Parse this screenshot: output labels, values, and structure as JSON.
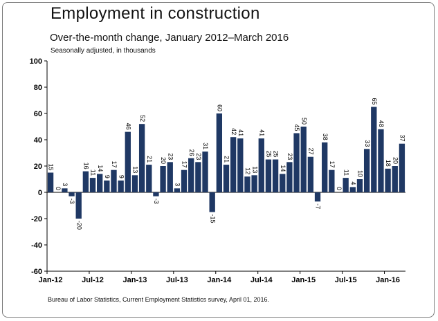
{
  "chart_data": {
    "type": "bar",
    "title": "Employment in construction",
    "subtitle": "Over-the-month change, January 2012–March 2016",
    "note": "Seasonally adjusted, in thousands",
    "source": "Bureau of Labor Statistics, Current Employment Statistics survey, April 01, 2016.",
    "xlabel": "",
    "ylabel": "",
    "ylim": [
      -60,
      100
    ],
    "y_ticks": [
      100,
      80,
      60,
      40,
      20,
      0,
      -20,
      -40,
      -60
    ],
    "grid": false,
    "legend": "none",
    "bar_color": "#1f3864",
    "x_tick_labels": [
      {
        "label": "Jan-12",
        "index": 0
      },
      {
        "label": "Jul-12",
        "index": 6
      },
      {
        "label": "Jan-13",
        "index": 12
      },
      {
        "label": "Jul-13",
        "index": 18
      },
      {
        "label": "Jan-14",
        "index": 24
      },
      {
        "label": "Jul-14",
        "index": 30
      },
      {
        "label": "Jan-15",
        "index": 36
      },
      {
        "label": "Jul-15",
        "index": 42
      },
      {
        "label": "Jan-16",
        "index": 48
      }
    ],
    "categories": [
      "Jan 2012",
      "Feb 2012",
      "Mar 2012",
      "Apr 2012",
      "May 2012",
      "Jun 2012",
      "Jul 2012",
      "Aug 2012",
      "Sep 2012",
      "Oct 2012",
      "Nov 2012",
      "Dec 2012",
      "Jan 2013",
      "Feb 2013",
      "Mar 2013",
      "Apr 2013",
      "May 2013",
      "Jun 2013",
      "Jul 2013",
      "Aug 2013",
      "Sep 2013",
      "Oct 2013",
      "Nov 2013",
      "Dec 2013",
      "Jan 2014",
      "Feb 2014",
      "Mar 2014",
      "Apr 2014",
      "May 2014",
      "Jun 2014",
      "Jul 2014",
      "Aug 2014",
      "Sep 2014",
      "Oct 2014",
      "Nov 2014",
      "Dec 2014",
      "Jan 2015",
      "Feb 2015",
      "Mar 2015",
      "Apr 2015",
      "May 2015",
      "Jun 2015",
      "Jul 2015",
      "Aug 2015",
      "Sep 2015",
      "Oct 2015",
      "Nov 2015",
      "Dec 2015",
      "Jan 2016",
      "Feb 2016",
      "Mar 2016"
    ],
    "values": [
      15,
      0,
      3,
      -3,
      -20,
      16,
      11,
      14,
      9,
      17,
      9,
      46,
      13,
      52,
      21,
      -3,
      20,
      23,
      3,
      17,
      26,
      23,
      31,
      -15,
      60,
      21,
      42,
      41,
      12,
      13,
      41,
      25,
      25,
      14,
      23,
      45,
      50,
      27,
      -7,
      38,
      17,
      0,
      11,
      4,
      10,
      33,
      65,
      48,
      18,
      20,
      37
    ]
  }
}
